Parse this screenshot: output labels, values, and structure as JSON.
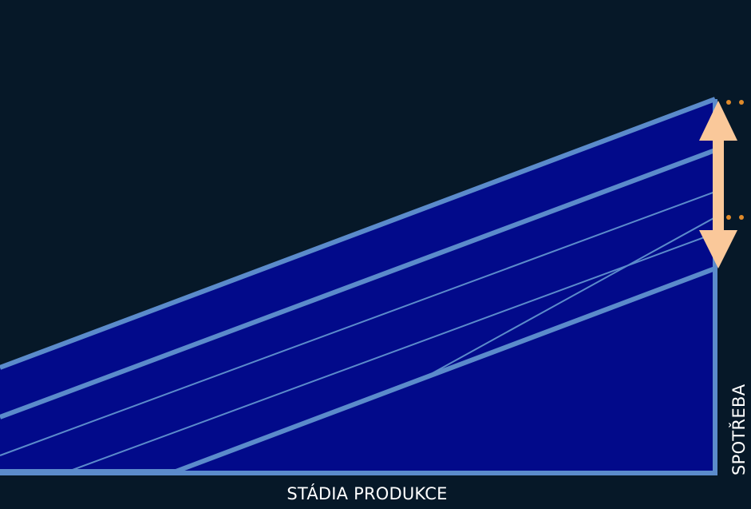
{
  "labels": {
    "x_axis": "STÁDIA PRODUKCE",
    "y_axis": "SPOTŘEBA"
  },
  "colors": {
    "background": "#061828",
    "fill": "#020A8A",
    "outline": "#5B8BCB",
    "arrow": "#FAC89A",
    "dots": "#E08A2A",
    "text": "#FFFFFF"
  }
}
